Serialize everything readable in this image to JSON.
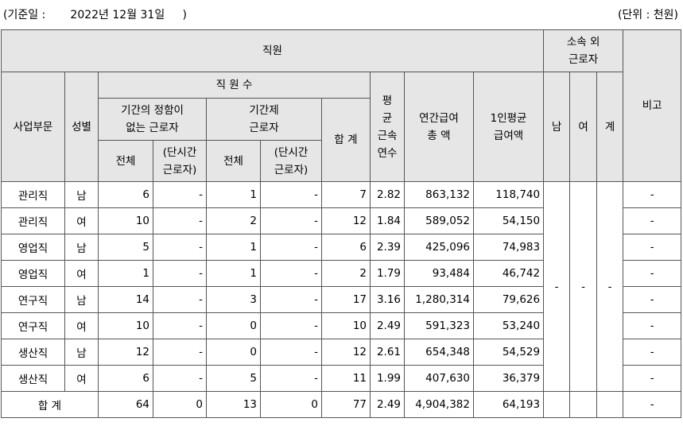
{
  "header": {
    "date_line": "(기준일 :       2022년 12월 31일     )",
    "unit": "(단위 : 천원)"
  },
  "columns": {
    "staff": "직원",
    "outsourced": [
      "소속 외",
      "근로자"
    ],
    "note": "비고",
    "division": "사업부문",
    "gender": "성별",
    "headcount": "직 원 수",
    "indefinite": [
      "기간의 정함이",
      "없는 근로자"
    ],
    "fixed": [
      "기간제",
      "근로자"
    ],
    "total_col": "합 계",
    "tenure": [
      "평",
      "균",
      "근속",
      "연수"
    ],
    "annual_pay": [
      "연간급여",
      "총 액"
    ],
    "avg_pay": [
      "1인평균",
      "급여액"
    ],
    "male": "남",
    "female": "여",
    "sum": "계",
    "all": "전체",
    "part_time": [
      "(단시간",
      "근로자)"
    ]
  },
  "rows": [
    {
      "division": "관리직",
      "gender": "남",
      "indef_total": "6",
      "indef_part": "-",
      "fixed_total": "1",
      "fixed_part": "-",
      "total": "7",
      "tenure": "2.82",
      "annual": "863,132",
      "avg": "118,740",
      "note": "-"
    },
    {
      "division": "관리직",
      "gender": "여",
      "indef_total": "10",
      "indef_part": "-",
      "fixed_total": "2",
      "fixed_part": "-",
      "total": "12",
      "tenure": "1.84",
      "annual": "589,052",
      "avg": "54,150",
      "note": "-"
    },
    {
      "division": "영업직",
      "gender": "남",
      "indef_total": "5",
      "indef_part": "-",
      "fixed_total": "1",
      "fixed_part": "-",
      "total": "6",
      "tenure": "2.39",
      "annual": "425,096",
      "avg": "74,983",
      "note": "-"
    },
    {
      "division": "영업직",
      "gender": "여",
      "indef_total": "1",
      "indef_part": "-",
      "fixed_total": "1",
      "fixed_part": "-",
      "total": "2",
      "tenure": "1.79",
      "annual": "93,484",
      "avg": "46,742",
      "note": "-"
    },
    {
      "division": "연구직",
      "gender": "남",
      "indef_total": "14",
      "indef_part": "-",
      "fixed_total": "3",
      "fixed_part": "-",
      "total": "17",
      "tenure": "3.16",
      "annual": "1,280,314",
      "avg": "79,626",
      "note": "-"
    },
    {
      "division": "연구직",
      "gender": "여",
      "indef_total": "10",
      "indef_part": "-",
      "fixed_total": "0",
      "fixed_part": "-",
      "total": "10",
      "tenure": "2.49",
      "annual": "591,323",
      "avg": "53,240",
      "note": "-"
    },
    {
      "division": "생산직",
      "gender": "남",
      "indef_total": "12",
      "indef_part": "-",
      "fixed_total": "0",
      "fixed_part": "-",
      "total": "12",
      "tenure": "2.61",
      "annual": "654,348",
      "avg": "54,529",
      "note": "-"
    },
    {
      "division": "생산직",
      "gender": "여",
      "indef_total": "6",
      "indef_part": "-",
      "fixed_total": "5",
      "fixed_part": "-",
      "total": "11",
      "tenure": "1.99",
      "annual": "407,630",
      "avg": "36,379",
      "note": "-"
    }
  ],
  "outsourced_values": {
    "male": "-",
    "female": "-",
    "sum": "-"
  },
  "total_row": {
    "label": "합 계",
    "indef_total": "64",
    "indef_part": "0",
    "fixed_total": "13",
    "fixed_part": "0",
    "total": "77",
    "tenure": "2.49",
    "annual": "4,904,382",
    "avg": "64,193",
    "note": "-"
  }
}
